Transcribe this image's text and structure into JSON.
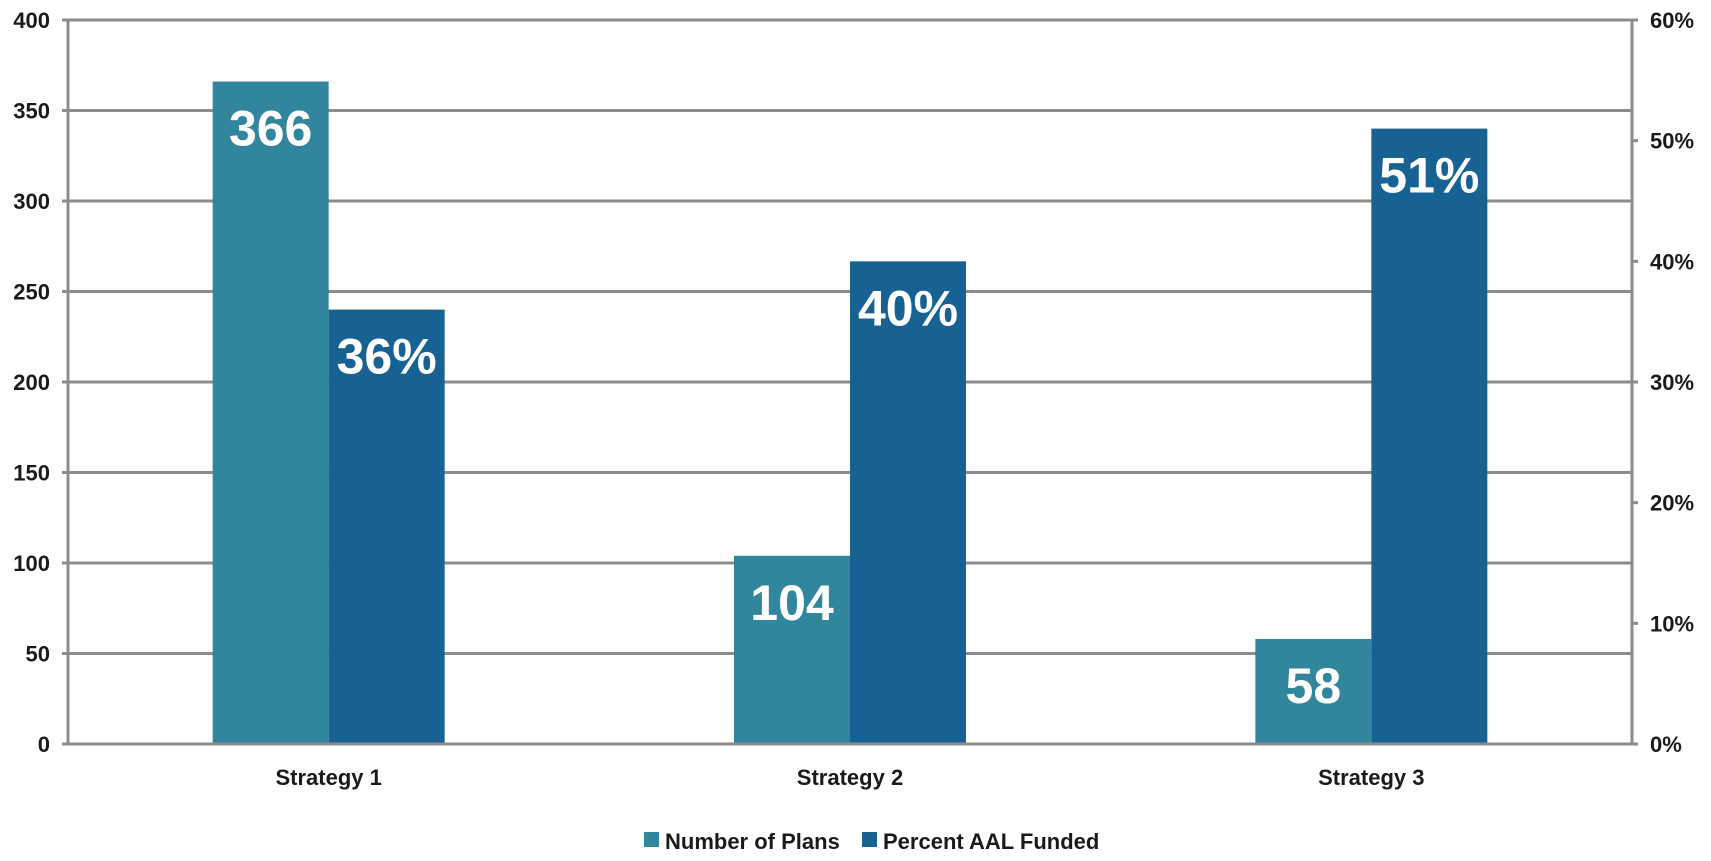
{
  "chart_data": {
    "type": "bar",
    "categories": [
      "Strategy 1",
      "Strategy 2",
      "Strategy 3"
    ],
    "series": [
      {
        "name": "Number of Plans",
        "axis": "left",
        "values": [
          366,
          104,
          58
        ],
        "labels": [
          "366",
          "104",
          "58"
        ],
        "color": "#31859c"
      },
      {
        "name": "Percent AAL Funded",
        "axis": "right",
        "values": [
          0.36,
          0.4,
          0.51
        ],
        "labels": [
          "36%",
          "40%",
          "51%"
        ],
        "color": "#176293"
      }
    ],
    "y_left": {
      "min": 0,
      "max": 400,
      "ticks": [
        "0",
        "50",
        "100",
        "150",
        "200",
        "250",
        "300",
        "350",
        "400"
      ]
    },
    "y_right": {
      "min": 0,
      "max": 0.6,
      "ticks": [
        "0%",
        "10%",
        "20%",
        "30%",
        "40%",
        "50%",
        "60%"
      ]
    },
    "grid": true,
    "grid_color": "#8c8c8c",
    "legend_position": "bottom",
    "title": "",
    "xlabel": "",
    "ylabel": ""
  }
}
